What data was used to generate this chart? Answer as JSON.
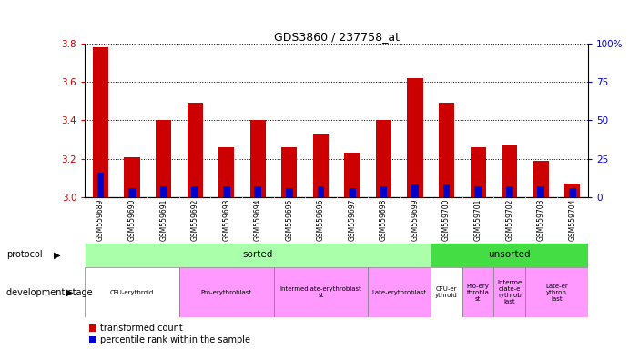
{
  "title": "GDS3860 / 237758_at",
  "samples": [
    "GSM559689",
    "GSM559690",
    "GSM559691",
    "GSM559692",
    "GSM559693",
    "GSM559694",
    "GSM559695",
    "GSM559696",
    "GSM559697",
    "GSM559698",
    "GSM559699",
    "GSM559700",
    "GSM559701",
    "GSM559702",
    "GSM559703",
    "GSM559704"
  ],
  "transformed_count": [
    3.78,
    3.21,
    3.4,
    3.49,
    3.26,
    3.4,
    3.26,
    3.33,
    3.23,
    3.4,
    3.62,
    3.49,
    3.26,
    3.27,
    3.19,
    3.07
  ],
  "percentile_rank": [
    16,
    6,
    7,
    7,
    7,
    7,
    6,
    7,
    6,
    7,
    8,
    8,
    7,
    7,
    7,
    6
  ],
  "ylim_left": [
    3.0,
    3.8
  ],
  "ylim_right": [
    0,
    100
  ],
  "yticks_left": [
    3.0,
    3.2,
    3.4,
    3.6,
    3.8
  ],
  "yticks_right": [
    0,
    25,
    50,
    75,
    100
  ],
  "bar_color": "#cc0000",
  "percentile_color": "#0000cc",
  "bar_width": 0.5,
  "protocol_sorted_range": [
    0,
    11
  ],
  "protocol_unsorted_range": [
    11,
    16
  ],
  "protocol_sorted_color": "#aaffaa",
  "protocol_unsorted_color": "#44dd44",
  "dev_stages": [
    {
      "label": "CFU-erythroid",
      "start": 0,
      "end": 3,
      "color": "#ffffff"
    },
    {
      "label": "Pro-erythroblast",
      "start": 3,
      "end": 6,
      "color": "#ff99ff"
    },
    {
      "label": "Intermediate-erythroblast\nst",
      "start": 6,
      "end": 9,
      "color": "#ff99ff"
    },
    {
      "label": "Late-erythroblast",
      "start": 9,
      "end": 11,
      "color": "#ff99ff"
    },
    {
      "label": "CFU-er\nythroid",
      "start": 11,
      "end": 12,
      "color": "#ffffff"
    },
    {
      "label": "Pro-ery\nthrobla\nst",
      "start": 12,
      "end": 13,
      "color": "#ff99ff"
    },
    {
      "label": "Interme\ndiate-e\nrythrob\nlast",
      "start": 13,
      "end": 14,
      "color": "#ff99ff"
    },
    {
      "label": "Late-er\nythrob\nlast",
      "start": 14,
      "end": 16,
      "color": "#ff99ff"
    }
  ],
  "legend_items": [
    "transformed count",
    "percentile rank within the sample"
  ],
  "legend_colors": [
    "#cc0000",
    "#0000cc"
  ],
  "background_color": "#ffffff",
  "grid_color": "#000000",
  "tick_label_color_left": "#cc0000",
  "tick_label_color_right": "#0000cc",
  "xtick_bg_color": "#cccccc",
  "right_ytick_labels": [
    "0",
    "25",
    "50",
    "75",
    "100%"
  ]
}
